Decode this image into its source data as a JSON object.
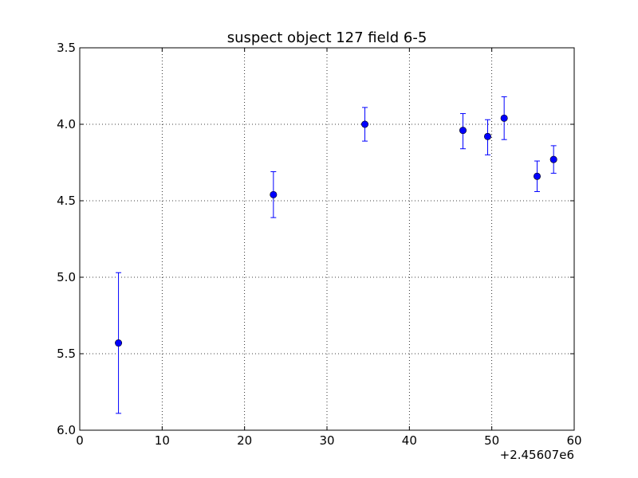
{
  "chart_data": {
    "type": "scatter",
    "title": "suspect object 127 field 6-5",
    "xlabel": "",
    "ylabel": "",
    "x_offset_label": "+2.45607e6",
    "xlim": [
      0,
      60
    ],
    "ylim": [
      6.0,
      3.5
    ],
    "y_inverted": true,
    "grid": true,
    "grid_style": "dotted",
    "x_ticks": [
      0,
      10,
      20,
      30,
      40,
      50,
      60
    ],
    "x_tick_labels": [
      "0",
      "10",
      "20",
      "30",
      "40",
      "50",
      "60"
    ],
    "y_ticks": [
      3.5,
      4.0,
      4.5,
      5.0,
      5.5,
      6.0
    ],
    "y_tick_labels": [
      "3.5",
      "4.0",
      "4.5",
      "5.0",
      "5.5",
      "6.0"
    ],
    "marker_color": "#0000ff",
    "points": [
      {
        "x": 4.7,
        "y": 5.43,
        "err_low": 5.89,
        "err_high": 4.97
      },
      {
        "x": 23.5,
        "y": 4.46,
        "err_low": 4.61,
        "err_high": 4.31
      },
      {
        "x": 34.6,
        "y": 4.0,
        "err_low": 4.11,
        "err_high": 3.89
      },
      {
        "x": 46.5,
        "y": 4.04,
        "err_low": 4.16,
        "err_high": 3.93
      },
      {
        "x": 49.5,
        "y": 4.08,
        "err_low": 4.2,
        "err_high": 3.97
      },
      {
        "x": 51.5,
        "y": 3.96,
        "err_low": 4.1,
        "err_high": 3.82
      },
      {
        "x": 55.5,
        "y": 4.34,
        "err_low": 4.44,
        "err_high": 4.24
      },
      {
        "x": 57.5,
        "y": 4.23,
        "err_low": 4.32,
        "err_high": 4.14
      }
    ]
  }
}
